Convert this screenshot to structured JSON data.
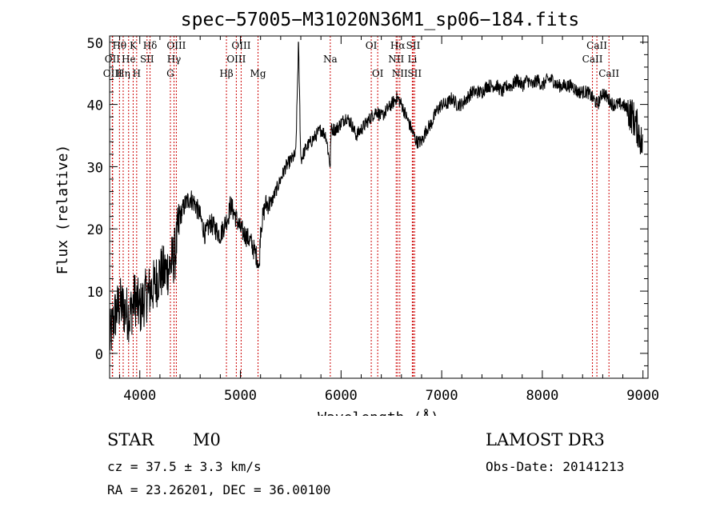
{
  "chart_data": {
    "type": "line",
    "title": "spec−57005−M31020N36M1_sp06−184.fits",
    "xlabel": "Wavelength (Å)",
    "ylabel": "Flux (relative)",
    "xlim": [
      3700,
      9050
    ],
    "ylim": [
      -4,
      51
    ],
    "x_ticks": [
      4000,
      5000,
      6000,
      7000,
      8000,
      9000
    ],
    "y_ticks": [
      0,
      10,
      20,
      30,
      40,
      50
    ],
    "grid": false,
    "line_color": "#000000",
    "marker_color": "#cc0000",
    "series": [
      {
        "name": "flux",
        "x": [
          3700,
          3750,
          3800,
          3850,
          3900,
          3950,
          4000,
          4050,
          4100,
          4150,
          4200,
          4250,
          4300,
          4350,
          4400,
          4450,
          4500,
          4550,
          4600,
          4650,
          4700,
          4750,
          4800,
          4850,
          4880,
          4900,
          4950,
          5000,
          5050,
          5100,
          5150,
          5175,
          5185,
          5200,
          5250,
          5300,
          5350,
          5400,
          5450,
          5500,
          5550,
          5577,
          5600,
          5650,
          5700,
          5750,
          5800,
          5850,
          5893,
          5900,
          5950,
          6000,
          6050,
          6100,
          6150,
          6200,
          6250,
          6300,
          6350,
          6400,
          6450,
          6500,
          6550,
          6563,
          6600,
          6650,
          6700,
          6750,
          6800,
          6850,
          6900,
          6950,
          7000,
          7050,
          7100,
          7150,
          7200,
          7250,
          7300,
          7350,
          7400,
          7450,
          7500,
          7550,
          7600,
          7650,
          7700,
          7750,
          7800,
          7850,
          7900,
          7950,
          8000,
          8050,
          8100,
          8150,
          8200,
          8250,
          8300,
          8350,
          8400,
          8450,
          8500,
          8550,
          8600,
          8650,
          8700,
          8750,
          8800,
          8850,
          8900,
          8950,
          9000
        ],
        "y": [
          2,
          6,
          8,
          7,
          6,
          9,
          7,
          9,
          10,
          11,
          13,
          13,
          14,
          16,
          22,
          24,
          25,
          24,
          22,
          19,
          21,
          20,
          19,
          21,
          22,
          24,
          22,
          20,
          19,
          18,
          16,
          15,
          13,
          20,
          24,
          24,
          26,
          28,
          30,
          31,
          32,
          50,
          31,
          33,
          34,
          35,
          36,
          35,
          30,
          36,
          36,
          37,
          38,
          37,
          35,
          36,
          37,
          38,
          39,
          38,
          39,
          40,
          41,
          41,
          40,
          38,
          36,
          34,
          34,
          36,
          37,
          39,
          40,
          40,
          41,
          40,
          40,
          41,
          42,
          42,
          42,
          43,
          43,
          43,
          42,
          43,
          43,
          44,
          43,
          44,
          43,
          44,
          43,
          44,
          44,
          43,
          43,
          43,
          43,
          42,
          42,
          42,
          41,
          40,
          42,
          41,
          40,
          40,
          40,
          39,
          38,
          36,
          33
        ]
      }
    ],
    "spectral_lines": [
      {
        "label": "Hθ",
        "wavelength": 3798,
        "row": 0
      },
      {
        "label": "OII",
        "wavelength": 3727,
        "row": 1
      },
      {
        "label": "OIII",
        "wavelength": 3730,
        "row": 2
      },
      {
        "label": "Hη",
        "wavelength": 3835,
        "row": 2
      },
      {
        "label": "K",
        "wavelength": 3934,
        "row": 0
      },
      {
        "label": "He",
        "wavelength": 3889,
        "row": 1
      },
      {
        "label": "H",
        "wavelength": 3969,
        "row": 2
      },
      {
        "label": "SII",
        "wavelength": 4072,
        "row": 1
      },
      {
        "label": "Hδ",
        "wavelength": 4102,
        "row": 0
      },
      {
        "label": "OIII",
        "wavelength": 4363,
        "row": 0
      },
      {
        "label": "Hγ",
        "wavelength": 4340,
        "row": 1
      },
      {
        "label": "G",
        "wavelength": 4304,
        "row": 2
      },
      {
        "label": "Hβ",
        "wavelength": 4861,
        "row": 2
      },
      {
        "label": "OIII",
        "wavelength": 5007,
        "row": 0
      },
      {
        "label": "OIII",
        "wavelength": 4959,
        "row": 1
      },
      {
        "label": "Mg",
        "wavelength": 5175,
        "row": 2
      },
      {
        "label": "Na",
        "wavelength": 5893,
        "row": 1
      },
      {
        "label": "OI",
        "wavelength": 6300,
        "row": 0
      },
      {
        "label": "OI",
        "wavelength": 6364,
        "row": 2
      },
      {
        "label": "Hα",
        "wavelength": 6563,
        "row": 0
      },
      {
        "label": "NII",
        "wavelength": 6548,
        "row": 1
      },
      {
        "label": "NII",
        "wavelength": 6584,
        "row": 2
      },
      {
        "label": "SII",
        "wavelength": 6717,
        "row": 0
      },
      {
        "label": "Li",
        "wavelength": 6708,
        "row": 1
      },
      {
        "label": "SII",
        "wavelength": 6731,
        "row": 2
      },
      {
        "label": "CaII",
        "wavelength": 8542,
        "row": 0
      },
      {
        "label": "CaII",
        "wavelength": 8498,
        "row": 1
      },
      {
        "label": "CaII",
        "wavelength": 8662,
        "row": 2
      }
    ]
  },
  "info": {
    "class": "STAR",
    "subclass": "M0",
    "survey": "LAMOST DR3",
    "cz": "cz = 37.5 ± 3.3 km/s",
    "obs_date": "Obs-Date: 20141213",
    "coords": "RA =  23.26201, DEC =  36.00100"
  }
}
